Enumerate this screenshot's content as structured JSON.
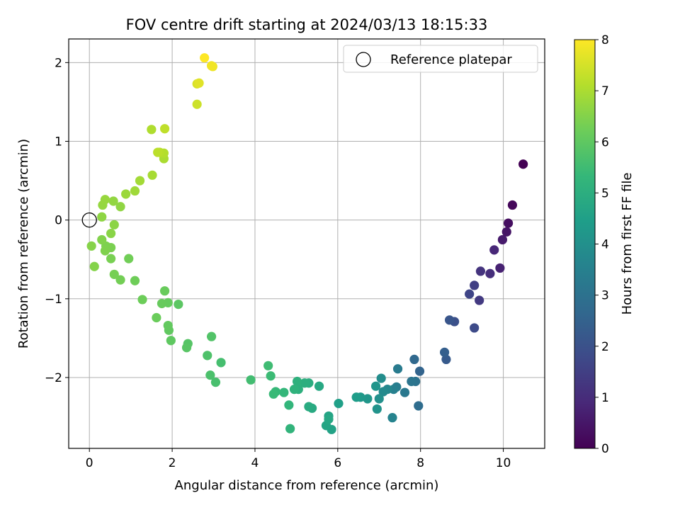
{
  "chart_data": {
    "type": "scatter",
    "title": "FOV centre drift starting at 2024/03/13 18:15:33",
    "xlabel": "Angular distance from reference (arcmin)",
    "ylabel": "Rotation from reference (arcmin)",
    "xlim": [
      -0.5,
      11
    ],
    "ylim": [
      -2.9,
      2.3
    ],
    "xticks": [
      0,
      2,
      4,
      6,
      8,
      10
    ],
    "yticks": [
      -2,
      -1,
      0,
      1,
      2
    ],
    "grid": true,
    "legend": {
      "placement": "top-right",
      "entries": [
        "Reference platepar"
      ]
    },
    "reference_point": {
      "x": 0,
      "y": 0,
      "label": "Reference platepar"
    },
    "colorbar": {
      "label": "Hours from first FF file",
      "min": 0,
      "max": 8,
      "ticks": [
        0,
        1,
        2,
        3,
        4,
        5,
        6,
        7,
        8
      ],
      "colormap": "viridis"
    },
    "points": [
      [
        10.48,
        0.71,
        0.0
      ],
      [
        10.22,
        0.19,
        0.15
      ],
      [
        10.12,
        -0.04,
        0.3
      ],
      [
        10.08,
        -0.15,
        0.45
      ],
      [
        9.98,
        -0.25,
        0.6
      ],
      [
        9.92,
        -0.61,
        0.75
      ],
      [
        9.78,
        -0.38,
        0.9
      ],
      [
        9.68,
        -0.68,
        1.05
      ],
      [
        9.45,
        -0.65,
        1.2
      ],
      [
        9.42,
        -1.02,
        1.35
      ],
      [
        9.3,
        -0.83,
        1.5
      ],
      [
        9.18,
        -0.94,
        1.65
      ],
      [
        9.3,
        -1.37,
        1.8
      ],
      [
        8.82,
        -1.29,
        1.95
      ],
      [
        8.7,
        -1.27,
        2.1
      ],
      [
        8.62,
        -1.77,
        2.25
      ],
      [
        8.58,
        -1.68,
        2.4
      ],
      [
        7.98,
        -1.92,
        2.55
      ],
      [
        7.85,
        -1.77,
        2.7
      ],
      [
        7.95,
        -2.36,
        2.85
      ],
      [
        7.88,
        -2.05,
        3.0
      ],
      [
        7.78,
        -2.05,
        3.1
      ],
      [
        7.62,
        -2.19,
        3.2
      ],
      [
        7.45,
        -1.89,
        3.3
      ],
      [
        7.42,
        -2.12,
        3.4
      ],
      [
        7.35,
        -2.15,
        3.5
      ],
      [
        7.32,
        -2.51,
        3.6
      ],
      [
        7.2,
        -2.15,
        3.7
      ],
      [
        7.1,
        -2.18,
        3.8
      ],
      [
        7.05,
        -2.01,
        3.9
      ],
      [
        7.0,
        -2.27,
        4.0
      ],
      [
        6.95,
        -2.4,
        4.1
      ],
      [
        6.92,
        -2.11,
        4.15
      ],
      [
        6.72,
        -2.27,
        4.2
      ],
      [
        6.55,
        -2.25,
        4.3
      ],
      [
        6.45,
        -2.25,
        4.4
      ],
      [
        6.02,
        -2.33,
        4.5
      ],
      [
        5.85,
        -2.66,
        4.6
      ],
      [
        5.78,
        -2.49,
        4.65
      ],
      [
        5.72,
        -2.61,
        4.7
      ],
      [
        5.78,
        -2.53,
        4.75
      ],
      [
        5.55,
        -2.11,
        4.8
      ],
      [
        5.38,
        -2.39,
        4.85
      ],
      [
        5.3,
        -2.37,
        4.9
      ],
      [
        5.3,
        -2.07,
        4.95
      ],
      [
        5.2,
        -2.07,
        5.0
      ],
      [
        5.05,
        -2.15,
        5.05
      ],
      [
        5.02,
        -2.05,
        5.1
      ],
      [
        4.95,
        -2.15,
        5.15
      ],
      [
        4.85,
        -2.65,
        5.2
      ],
      [
        4.82,
        -2.35,
        5.25
      ],
      [
        4.7,
        -2.19,
        5.3
      ],
      [
        4.5,
        -2.18,
        5.35
      ],
      [
        4.45,
        -2.21,
        5.4
      ],
      [
        4.38,
        -1.98,
        5.45
      ],
      [
        4.32,
        -1.85,
        5.5
      ],
      [
        3.9,
        -2.03,
        5.55
      ],
      [
        3.18,
        -1.81,
        5.6
      ],
      [
        3.05,
        -2.06,
        5.65
      ],
      [
        2.92,
        -1.97,
        5.7
      ],
      [
        2.85,
        -1.72,
        5.75
      ],
      [
        2.95,
        -1.48,
        5.8
      ],
      [
        2.38,
        -1.57,
        5.85
      ],
      [
        2.35,
        -1.62,
        5.9
      ],
      [
        2.15,
        -1.07,
        5.95
      ],
      [
        1.97,
        -1.53,
        6.0
      ],
      [
        1.92,
        -1.4,
        6.03
      ],
      [
        1.9,
        -1.34,
        6.06
      ],
      [
        1.9,
        -1.05,
        6.09
      ],
      [
        1.75,
        -1.06,
        6.12
      ],
      [
        1.82,
        -0.9,
        6.15
      ],
      [
        1.62,
        -1.24,
        6.18
      ],
      [
        1.28,
        -1.01,
        6.21
      ],
      [
        1.1,
        -0.77,
        6.24
      ],
      [
        0.95,
        -0.49,
        6.27
      ],
      [
        0.75,
        -0.76,
        6.3
      ],
      [
        0.6,
        -0.69,
        6.33
      ],
      [
        0.52,
        -0.49,
        6.36
      ],
      [
        0.52,
        -0.35,
        6.39
      ],
      [
        0.4,
        -0.33,
        6.42
      ],
      [
        0.38,
        -0.39,
        6.45
      ],
      [
        0.3,
        -0.25,
        6.48
      ],
      [
        0.12,
        -0.59,
        6.51
      ],
      [
        0.05,
        -0.33,
        6.54
      ],
      [
        0.52,
        -0.17,
        6.57
      ],
      [
        0.6,
        -0.06,
        6.6
      ],
      [
        0.3,
        0.04,
        6.63
      ],
      [
        0.75,
        0.17,
        6.66
      ],
      [
        0.58,
        0.24,
        6.69
      ],
      [
        0.32,
        0.19,
        6.72
      ],
      [
        0.38,
        0.26,
        6.75
      ],
      [
        0.88,
        0.33,
        6.8
      ],
      [
        1.1,
        0.37,
        6.85
      ],
      [
        1.22,
        0.5,
        6.9
      ],
      [
        1.52,
        0.57,
        6.95
      ],
      [
        1.8,
        0.78,
        7.0
      ],
      [
        1.5,
        1.15,
        7.05
      ],
      [
        1.8,
        0.85,
        7.1
      ],
      [
        1.7,
        0.86,
        7.15
      ],
      [
        1.65,
        0.86,
        7.2
      ],
      [
        1.82,
        1.16,
        7.25
      ],
      [
        2.6,
        1.47,
        7.4
      ],
      [
        2.6,
        1.73,
        7.55
      ],
      [
        2.65,
        1.74,
        7.65
      ],
      [
        2.98,
        1.95,
        7.8
      ],
      [
        2.95,
        1.96,
        7.85
      ],
      [
        2.78,
        2.06,
        8.0
      ]
    ]
  }
}
